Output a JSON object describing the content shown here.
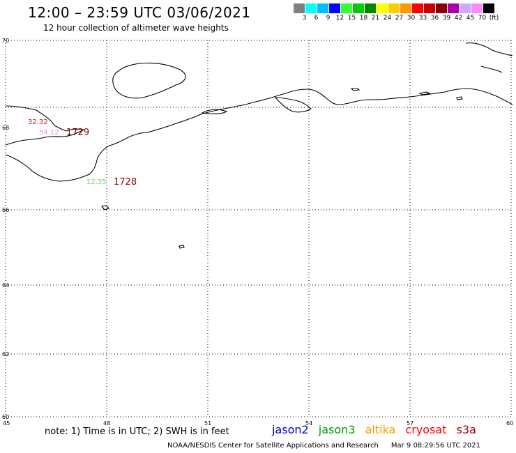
{
  "header": {
    "title": "12:00 – 23:59 UTC 03/06/2021",
    "subtitle": "12 hour collection of altimeter wave heights"
  },
  "legend": {
    "colors": [
      "#808080",
      "#00ffff",
      "#00bfff",
      "#0000ff",
      "#33ff33",
      "#00cc00",
      "#008800",
      "#ffff00",
      "#ffcc00",
      "#ff9900",
      "#ff0000",
      "#cc0000",
      "#880000",
      "#aa00aa",
      "#ccaaff",
      "#ff88ff",
      "#000000"
    ],
    "labels": [
      "3",
      "6",
      "9",
      "12",
      "15",
      "18",
      "21",
      "24",
      "27",
      "30",
      "33",
      "36",
      "39",
      "42",
      "45",
      "70",
      "(ft)"
    ]
  },
  "axes": {
    "y_ticks": [
      "70",
      "68",
      "66",
      "64",
      "62",
      "60"
    ],
    "x_ticks": [
      "45",
      "48",
      "51",
      "54",
      "57",
      "60"
    ]
  },
  "observations": [
    {
      "value": "32.32",
      "color": "#cc2222"
    },
    {
      "value": "54.12",
      "color": "#dd99dd"
    },
    {
      "value": "1729",
      "color": "#880000"
    },
    {
      "value": "12.35",
      "color": "#66dd66"
    },
    {
      "value": "1728",
      "color": "#880000"
    }
  ],
  "note": "note: 1) Time is in UTC; 2) SWH is in feet",
  "satellites": [
    {
      "name": "jason2",
      "color": "#0000cc"
    },
    {
      "name": "jason3",
      "color": "#009900"
    },
    {
      "name": "altika",
      "color": "#ff9900"
    },
    {
      "name": "cryosat",
      "color": "#ff0000"
    },
    {
      "name": "s3a",
      "color": "#990000"
    }
  ],
  "footer": {
    "credit": "NOAA/NESDIS Center for Satellite Applications and Research",
    "timestamp": "Mar  9 08:29:56 UTC 2021"
  }
}
